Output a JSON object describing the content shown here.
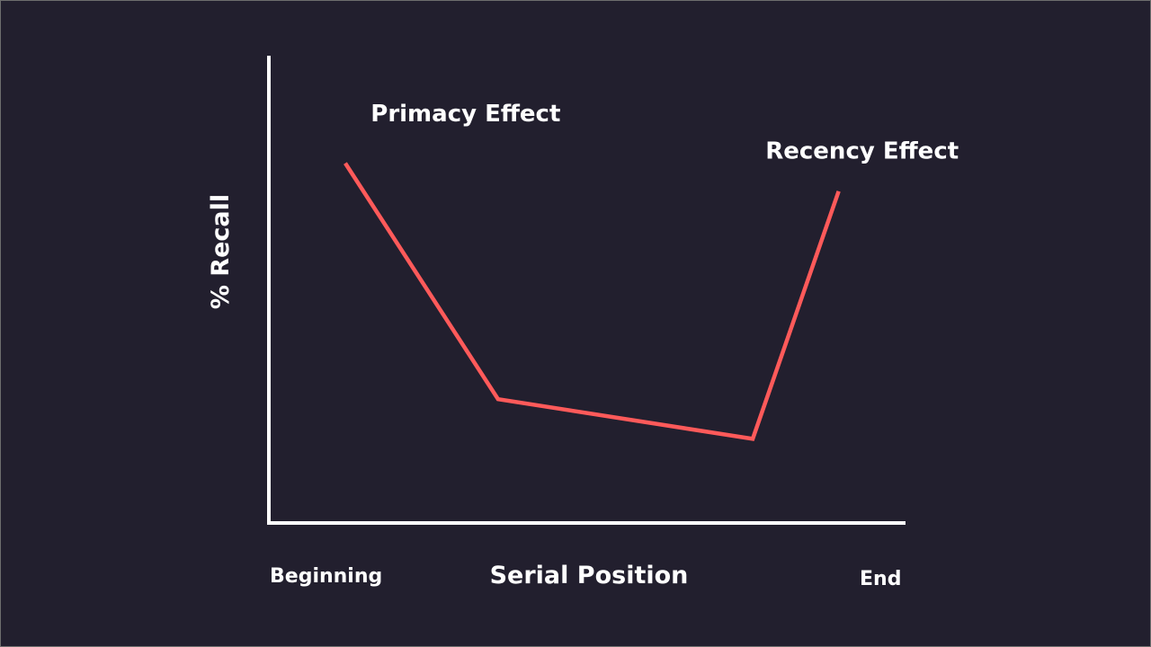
{
  "chart_data": {
    "type": "line",
    "title": "",
    "xlabel": "Serial Position",
    "ylabel": "% Recall",
    "x_tick_labels": [
      "Beginning",
      "End"
    ],
    "xlim": [
      0,
      100
    ],
    "ylim": [
      0,
      100
    ],
    "grid": false,
    "series": [
      {
        "x": [
          12,
          36,
          76,
          89.5
        ],
        "y": [
          77,
          26.5,
          18,
          71
        ]
      }
    ],
    "annotations": [
      {
        "text": "Primacy Effect",
        "x": 16,
        "y": 86
      },
      {
        "text": "Recency Effect",
        "x": 78,
        "y": 78
      }
    ],
    "colors": {
      "background": "#221f2e",
      "line": "#ff5a5a",
      "axes": "#ffffff"
    }
  }
}
